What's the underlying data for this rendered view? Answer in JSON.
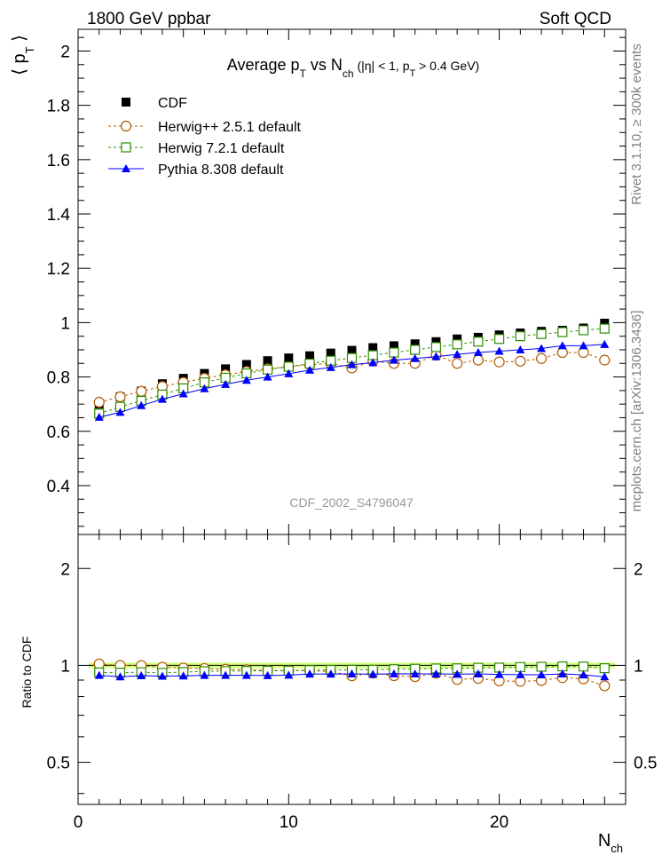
{
  "header": {
    "left": "1800 GeV ppbar",
    "right": "Soft QCD"
  },
  "side_text": {
    "upper": "Rivet 3.1.10, ≥ 300k events",
    "lower": "mcplots.cern.ch [arXiv:1306.3436]"
  },
  "watermark": "CDF_2002_S4796047",
  "colors": {
    "cdf": "#000000",
    "herwigpp": "#b35900",
    "herwig7": "#2e8b00",
    "pythia": "#0000ff",
    "band": "#ccff66"
  },
  "chart_data": [
    {
      "type": "scatter",
      "title": "Average p_T vs N_ch (|η| < 1, p_T > 0.4 GeV)",
      "title_parts": {
        "a": "Average p",
        "b": "T",
        "c": " vs N",
        "d": "ch",
        "e": " (|η| < 1, p",
        "f": "T",
        "g": " > 0.4 GeV)"
      },
      "ylabel": "⟨ p_T ⟩",
      "ylabel_parts": {
        "a": "⟨ p",
        "b": "T",
        "c": " ⟩"
      },
      "xlim": [
        0,
        26
      ],
      "ylim": [
        0.22,
        2.08
      ],
      "yticks": [
        0.4,
        0.6,
        0.8,
        1,
        1.2,
        1.4,
        1.6,
        1.8,
        2
      ],
      "ytick_labels": [
        "0.4",
        "0.6",
        "0.8",
        "1",
        "1.2",
        "1.4",
        "1.6",
        "1.8",
        "2"
      ],
      "x": [
        1,
        2,
        3,
        4,
        5,
        6,
        7,
        8,
        9,
        10,
        11,
        12,
        13,
        14,
        15,
        16,
        17,
        18,
        19,
        20,
        21,
        22,
        23,
        24,
        25
      ],
      "legend_position": "top-left",
      "series": [
        {
          "name": "CDF",
          "marker": "filled-square",
          "color_key": "cdf",
          "values": [
            0.7,
            0.727,
            0.748,
            0.775,
            0.795,
            0.813,
            0.83,
            0.846,
            0.86,
            0.87,
            0.878,
            0.888,
            0.898,
            0.908,
            0.915,
            0.922,
            0.93,
            0.94,
            0.946,
            0.955,
            0.962,
            0.968,
            0.972,
            0.98,
            0.998
          ]
        },
        {
          "name": "Herwig++ 2.5.1 default",
          "marker": "open-circle",
          "color_key": "herwigpp",
          "values": [
            0.707,
            0.727,
            0.747,
            0.765,
            0.78,
            0.795,
            0.808,
            0.82,
            0.83,
            0.838,
            0.845,
            0.85,
            0.833,
            0.858,
            0.85,
            0.85,
            0.88,
            0.85,
            0.862,
            0.855,
            0.858,
            0.868,
            0.89,
            0.89,
            0.862
          ]
        },
        {
          "name": "Herwig 7.2.1 default",
          "marker": "open-square",
          "color_key": "herwig7",
          "values": [
            0.665,
            0.69,
            0.712,
            0.735,
            0.758,
            0.78,
            0.797,
            0.813,
            0.827,
            0.838,
            0.849,
            0.86,
            0.87,
            0.88,
            0.89,
            0.9,
            0.91,
            0.92,
            0.93,
            0.94,
            0.95,
            0.958,
            0.965,
            0.972,
            0.978
          ]
        },
        {
          "name": "Pythia 8.308 default",
          "marker": "filled-triangle",
          "color_key": "pythia",
          "values": [
            0.652,
            0.67,
            0.695,
            0.718,
            0.738,
            0.757,
            0.773,
            0.788,
            0.8,
            0.812,
            0.825,
            0.835,
            0.845,
            0.853,
            0.862,
            0.868,
            0.875,
            0.883,
            0.89,
            0.895,
            0.9,
            0.905,
            0.915,
            0.915,
            0.92
          ]
        }
      ]
    },
    {
      "type": "scatter",
      "title": "",
      "ylabel": "Ratio to CDF",
      "xlabel": "N_ch",
      "xlabel_parts": {
        "a": "N",
        "b": "ch"
      },
      "xlim": [
        0,
        26
      ],
      "ylim": [
        0.37,
        2.55
      ],
      "yscale": "log",
      "yticks": [
        0.5,
        1,
        2
      ],
      "ytick_labels": [
        "0.5",
        "1",
        "2"
      ],
      "xticks": [
        0,
        10,
        20
      ],
      "xtick_labels": [
        "0",
        "10",
        "20"
      ],
      "x": [
        1,
        2,
        3,
        4,
        5,
        6,
        7,
        8,
        9,
        10,
        11,
        12,
        13,
        14,
        15,
        16,
        17,
        18,
        19,
        20,
        21,
        22,
        23,
        24,
        25
      ],
      "reference_band": [
        0.98,
        1.02
      ],
      "series": [
        {
          "name": "Herwig++ 2.5.1 default",
          "marker": "open-circle",
          "color_key": "herwigpp",
          "values": [
            1.01,
            1.0,
            0.999,
            0.987,
            0.981,
            0.978,
            0.973,
            0.969,
            0.965,
            0.963,
            0.962,
            0.957,
            0.928,
            0.945,
            0.929,
            0.922,
            0.946,
            0.904,
            0.911,
            0.895,
            0.892,
            0.897,
            0.916,
            0.908,
            0.864
          ]
        },
        {
          "name": "Herwig 7.2.1 default",
          "marker": "open-square",
          "color_key": "herwig7",
          "values": [
            0.95,
            0.949,
            0.952,
            0.948,
            0.953,
            0.959,
            0.96,
            0.961,
            0.962,
            0.963,
            0.967,
            0.968,
            0.969,
            0.969,
            0.973,
            0.976,
            0.978,
            0.979,
            0.983,
            0.984,
            0.988,
            0.99,
            0.993,
            0.992,
            0.98
          ]
        },
        {
          "name": "Pythia 8.308 default",
          "marker": "filled-triangle",
          "color_key": "pythia",
          "values": [
            0.931,
            0.922,
            0.929,
            0.926,
            0.928,
            0.931,
            0.931,
            0.931,
            0.93,
            0.933,
            0.94,
            0.94,
            0.941,
            0.939,
            0.942,
            0.941,
            0.941,
            0.939,
            0.941,
            0.937,
            0.936,
            0.935,
            0.941,
            0.934,
            0.922
          ]
        }
      ]
    }
  ]
}
